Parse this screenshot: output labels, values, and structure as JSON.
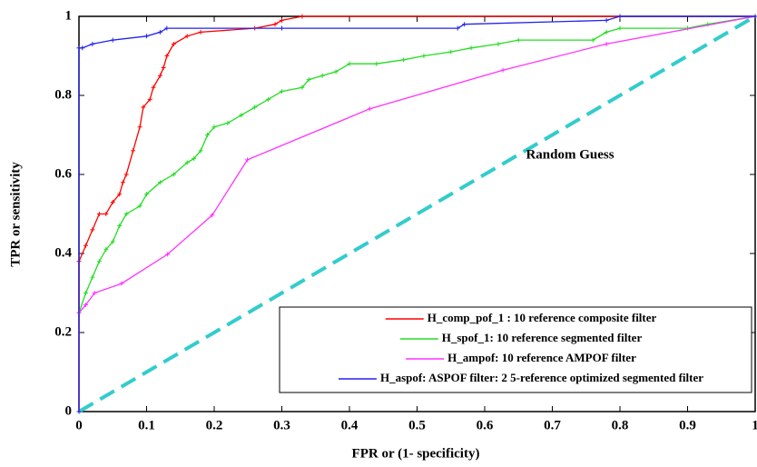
{
  "chart_data": {
    "type": "line",
    "xlabel": "FPR or (1- specificity)",
    "ylabel": "TPR or sensitivity",
    "annotation": "Random Guess",
    "xlim": [
      0,
      1
    ],
    "ylim": [
      0,
      1
    ],
    "xticks": [
      0,
      0.1,
      0.2,
      0.3,
      0.4,
      0.5,
      0.6,
      0.7,
      0.8,
      0.9,
      1
    ],
    "yticks": [
      0,
      0.2,
      0.4,
      0.6,
      0.8,
      1
    ],
    "legend": "lower right",
    "reference_line": {
      "color": "#33cccc",
      "x": [
        0,
        1
      ],
      "values": [
        0,
        1
      ]
    },
    "series": [
      {
        "name": "H_comp_pof_1 : 10 reference composite filter",
        "color": "#ff0000",
        "x": [
          0,
          0,
          0.01,
          0.02,
          0.03,
          0.04,
          0.05,
          0.06,
          0.065,
          0.07,
          0.08,
          0.09,
          0.095,
          0.105,
          0.11,
          0.12,
          0.125,
          0.13,
          0.14,
          0.16,
          0.18,
          0.26,
          0.29,
          0.3,
          0.33,
          1
        ],
        "values": [
          0,
          0.38,
          0.42,
          0.46,
          0.5,
          0.5,
          0.53,
          0.55,
          0.58,
          0.6,
          0.66,
          0.72,
          0.77,
          0.79,
          0.82,
          0.85,
          0.87,
          0.9,
          0.93,
          0.95,
          0.96,
          0.97,
          0.98,
          0.99,
          1,
          1
        ]
      },
      {
        "name": "H_spof_1:  10 reference segmented filter",
        "color": "#22dd22",
        "x": [
          0,
          0,
          0.01,
          0.02,
          0.03,
          0.04,
          0.05,
          0.06,
          0.07,
          0.09,
          0.1,
          0.12,
          0.14,
          0.16,
          0.17,
          0.18,
          0.19,
          0.2,
          0.22,
          0.24,
          0.26,
          0.28,
          0.3,
          0.33,
          0.34,
          0.36,
          0.38,
          0.4,
          0.44,
          0.48,
          0.51,
          0.55,
          0.58,
          0.62,
          0.65,
          0.76,
          0.78,
          0.8,
          0.9,
          0.93,
          1
        ],
        "values": [
          0,
          0.25,
          0.3,
          0.34,
          0.38,
          0.41,
          0.43,
          0.47,
          0.5,
          0.52,
          0.55,
          0.58,
          0.6,
          0.63,
          0.64,
          0.66,
          0.7,
          0.72,
          0.73,
          0.75,
          0.77,
          0.79,
          0.81,
          0.82,
          0.84,
          0.85,
          0.86,
          0.88,
          0.88,
          0.89,
          0.9,
          0.91,
          0.92,
          0.93,
          0.94,
          0.94,
          0.96,
          0.97,
          0.97,
          0.98,
          1
        ]
      },
      {
        "name": "H_ampof: 10 reference AMPOF filter",
        "color": "#ff33ff",
        "x": [
          0,
          0,
          0.01,
          0.023,
          0.063,
          0.131,
          0.197,
          0.249,
          0.43,
          0.627,
          0.78,
          1
        ],
        "values": [
          0,
          0.25,
          0.27,
          0.3,
          0.324,
          0.398,
          0.497,
          0.637,
          0.766,
          0.864,
          0.93,
          1
        ]
      },
      {
        "name": "H_aspof: ASPOF filter: 2 5-reference  optimized segmented filter",
        "color": "#2222ee",
        "x": [
          0,
          0,
          0.005,
          0.02,
          0.05,
          0.1,
          0.12,
          0.13,
          0.3,
          0.56,
          0.57,
          0.78,
          0.8,
          1
        ],
        "values": [
          0,
          0.92,
          0.92,
          0.93,
          0.94,
          0.95,
          0.96,
          0.97,
          0.97,
          0.97,
          0.98,
          0.99,
          1,
          1
        ]
      }
    ]
  }
}
